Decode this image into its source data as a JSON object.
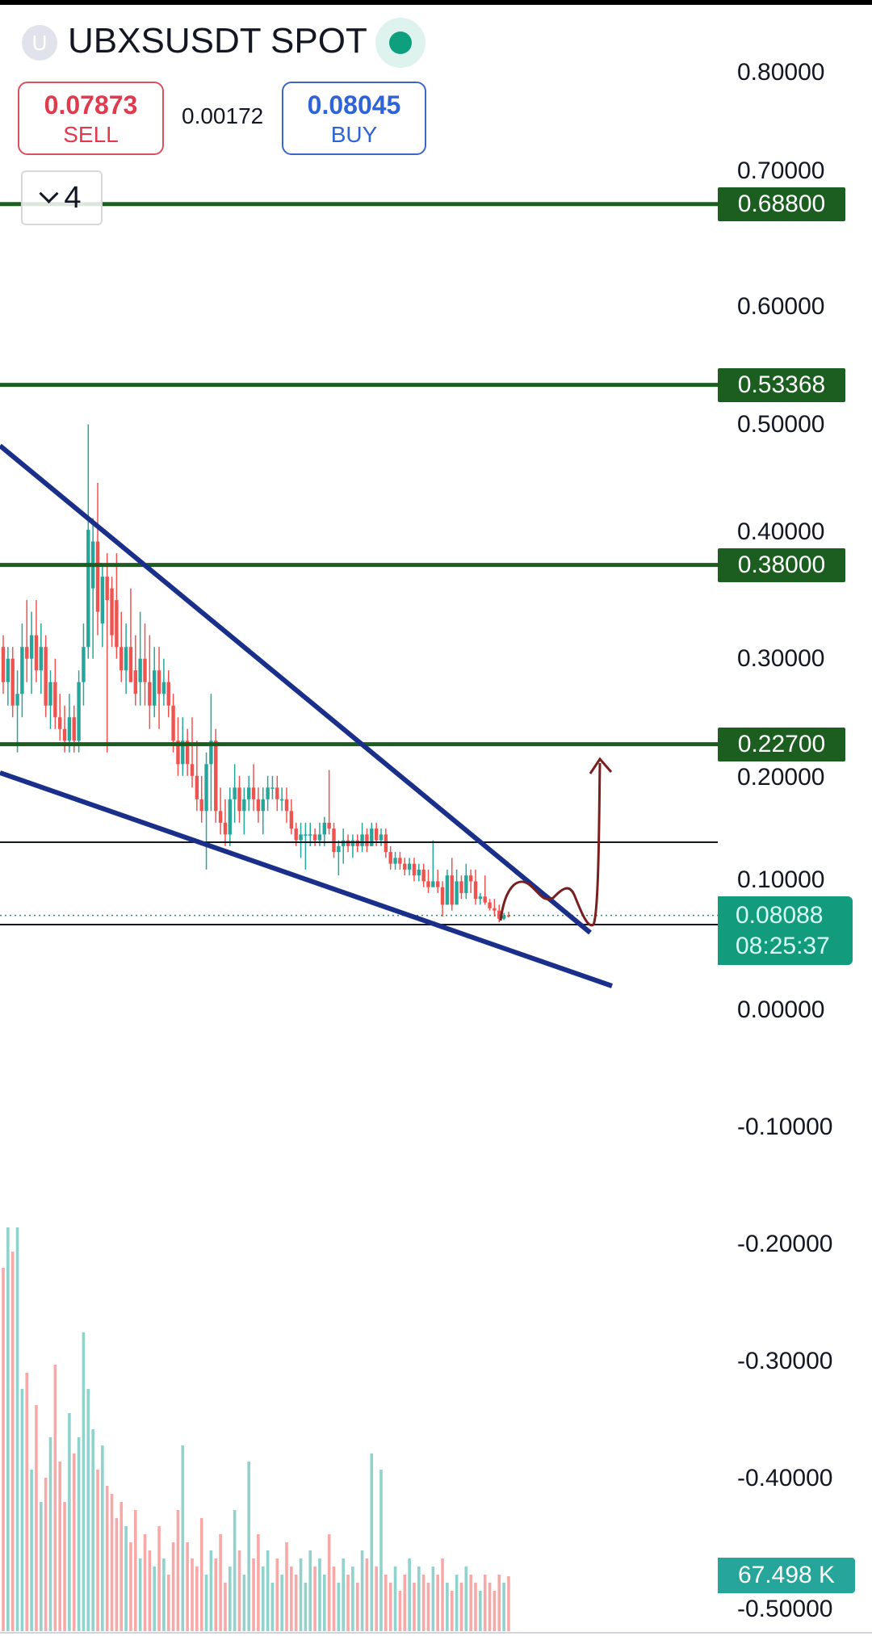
{
  "header": {
    "avatar_letter": "U",
    "symbol": "UBXSUSDT SPOT",
    "status_color": "#0e9f7e",
    "sell": {
      "price": "0.07873",
      "label": "SELL",
      "color": "#e03a4d"
    },
    "spread": "0.00172",
    "buy": {
      "price": "0.08045",
      "label": "BUY",
      "color": "#2f63d8"
    },
    "indicators_toggle": {
      "icon": "chevron-down-icon",
      "count": "4"
    }
  },
  "price_axis": {
    "labels": [
      "0.80000",
      "0.70000",
      "0.60000",
      "0.50000",
      "0.40000",
      "0.30000",
      "0.20000",
      "0.10000",
      "0.00000",
      "-0.10000",
      "-0.20000",
      "-0.30000",
      "-0.40000",
      "-0.50000"
    ],
    "values": [
      0.8,
      0.7,
      0.6,
      0.5,
      0.4,
      0.3,
      0.2,
      0.1,
      0.0,
      -0.1,
      -0.2,
      -0.3,
      -0.4,
      -0.5
    ]
  },
  "levels": [
    {
      "label": "0.68800",
      "value": 0.688
    },
    {
      "label": "0.53368",
      "value": 0.53368
    },
    {
      "label": "0.38000",
      "value": 0.38
    },
    {
      "label": "0.22700",
      "value": 0.227
    }
  ],
  "current_price": {
    "price": "0.08088",
    "countdown": "08:25:37",
    "value": 0.08088,
    "color": "#139b7d"
  },
  "volume": {
    "last_label": "67.498 K",
    "color": "#26a69a"
  },
  "colors": {
    "up": "#26a69a",
    "down": "#ef5350",
    "level": "#1b5e20",
    "trendline": "#1a2f8a",
    "drawing": "#7a1f1f"
  },
  "chart_data": {
    "type": "candlestick",
    "ylim": [
      -0.5,
      0.8
    ],
    "candles_ohlc": [
      [
        0.31,
        0.32,
        0.27,
        0.28
      ],
      [
        0.28,
        0.31,
        0.26,
        0.3
      ],
      [
        0.3,
        0.31,
        0.25,
        0.26
      ],
      [
        0.26,
        0.29,
        0.22,
        0.27
      ],
      [
        0.27,
        0.33,
        0.25,
        0.31
      ],
      [
        0.31,
        0.35,
        0.28,
        0.3
      ],
      [
        0.3,
        0.34,
        0.27,
        0.32
      ],
      [
        0.32,
        0.35,
        0.28,
        0.29
      ],
      [
        0.29,
        0.33,
        0.27,
        0.31
      ],
      [
        0.31,
        0.32,
        0.25,
        0.26
      ],
      [
        0.26,
        0.29,
        0.24,
        0.28
      ],
      [
        0.28,
        0.3,
        0.24,
        0.25
      ],
      [
        0.25,
        0.27,
        0.23,
        0.24
      ],
      [
        0.24,
        0.26,
        0.22,
        0.23
      ],
      [
        0.23,
        0.27,
        0.22,
        0.25
      ],
      [
        0.25,
        0.26,
        0.22,
        0.23
      ],
      [
        0.23,
        0.29,
        0.22,
        0.28
      ],
      [
        0.28,
        0.33,
        0.26,
        0.31
      ],
      [
        0.31,
        0.5,
        0.3,
        0.41
      ],
      [
        0.36,
        0.42,
        0.3,
        0.4
      ],
      [
        0.4,
        0.45,
        0.32,
        0.34
      ],
      [
        0.33,
        0.38,
        0.31,
        0.37
      ],
      [
        0.37,
        0.39,
        0.22,
        0.35
      ],
      [
        0.36,
        0.37,
        0.31,
        0.32
      ],
      [
        0.35,
        0.39,
        0.3,
        0.31
      ],
      [
        0.31,
        0.34,
        0.28,
        0.29
      ],
      [
        0.29,
        0.33,
        0.27,
        0.31
      ],
      [
        0.31,
        0.36,
        0.28,
        0.28
      ],
      [
        0.29,
        0.32,
        0.26,
        0.27
      ],
      [
        0.28,
        0.34,
        0.26,
        0.3
      ],
      [
        0.3,
        0.33,
        0.26,
        0.28
      ],
      [
        0.28,
        0.32,
        0.24,
        0.26
      ],
      [
        0.26,
        0.31,
        0.25,
        0.29
      ],
      [
        0.29,
        0.31,
        0.24,
        0.27
      ],
      [
        0.27,
        0.3,
        0.26,
        0.28
      ],
      [
        0.28,
        0.29,
        0.25,
        0.26
      ],
      [
        0.26,
        0.27,
        0.22,
        0.23
      ],
      [
        0.23,
        0.25,
        0.2,
        0.21
      ],
      [
        0.21,
        0.25,
        0.2,
        0.23
      ],
      [
        0.23,
        0.24,
        0.2,
        0.21
      ],
      [
        0.21,
        0.25,
        0.19,
        0.2
      ],
      [
        0.2,
        0.23,
        0.17,
        0.18
      ],
      [
        0.18,
        0.2,
        0.16,
        0.17
      ],
      [
        0.17,
        0.22,
        0.12,
        0.21
      ],
      [
        0.21,
        0.27,
        0.17,
        0.23
      ],
      [
        0.23,
        0.24,
        0.16,
        0.17
      ],
      [
        0.17,
        0.19,
        0.15,
        0.16
      ],
      [
        0.16,
        0.18,
        0.14,
        0.15
      ],
      [
        0.15,
        0.19,
        0.14,
        0.18
      ],
      [
        0.18,
        0.21,
        0.16,
        0.19
      ],
      [
        0.19,
        0.2,
        0.16,
        0.17
      ],
      [
        0.17,
        0.19,
        0.15,
        0.18
      ],
      [
        0.18,
        0.2,
        0.17,
        0.19
      ],
      [
        0.19,
        0.21,
        0.17,
        0.18
      ],
      [
        0.18,
        0.19,
        0.16,
        0.17
      ],
      [
        0.17,
        0.19,
        0.15,
        0.18
      ],
      [
        0.18,
        0.2,
        0.17,
        0.19
      ],
      [
        0.19,
        0.2,
        0.18,
        0.19
      ],
      [
        0.19,
        0.2,
        0.17,
        0.18
      ],
      [
        0.18,
        0.19,
        0.17,
        0.18
      ],
      [
        0.18,
        0.19,
        0.16,
        0.17
      ],
      [
        0.17,
        0.18,
        0.15,
        0.155
      ],
      [
        0.155,
        0.16,
        0.14,
        0.145
      ],
      [
        0.145,
        0.16,
        0.13,
        0.15
      ],
      [
        0.15,
        0.16,
        0.12,
        0.15
      ],
      [
        0.15,
        0.16,
        0.14,
        0.15
      ],
      [
        0.15,
        0.155,
        0.14,
        0.145
      ],
      [
        0.145,
        0.16,
        0.14,
        0.15
      ],
      [
        0.15,
        0.165,
        0.14,
        0.16
      ],
      [
        0.16,
        0.205,
        0.15,
        0.155
      ],
      [
        0.155,
        0.16,
        0.13,
        0.135
      ],
      [
        0.135,
        0.145,
        0.115,
        0.14
      ],
      [
        0.14,
        0.155,
        0.125,
        0.145
      ],
      [
        0.145,
        0.15,
        0.135,
        0.14
      ],
      [
        0.14,
        0.15,
        0.13,
        0.145
      ],
      [
        0.145,
        0.15,
        0.135,
        0.14
      ],
      [
        0.14,
        0.16,
        0.135,
        0.15
      ],
      [
        0.15,
        0.155,
        0.135,
        0.14
      ],
      [
        0.14,
        0.16,
        0.14,
        0.155
      ],
      [
        0.155,
        0.16,
        0.14,
        0.145
      ],
      [
        0.145,
        0.155,
        0.14,
        0.15
      ],
      [
        0.15,
        0.155,
        0.13,
        0.135
      ],
      [
        0.135,
        0.14,
        0.12,
        0.125
      ],
      [
        0.125,
        0.135,
        0.12,
        0.13
      ],
      [
        0.13,
        0.135,
        0.12,
        0.125
      ],
      [
        0.125,
        0.13,
        0.115,
        0.12
      ],
      [
        0.12,
        0.13,
        0.115,
        0.125
      ],
      [
        0.125,
        0.13,
        0.11,
        0.115
      ],
      [
        0.115,
        0.125,
        0.11,
        0.12
      ],
      [
        0.12,
        0.125,
        0.105,
        0.11
      ],
      [
        0.11,
        0.12,
        0.1,
        0.105
      ],
      [
        0.105,
        0.145,
        0.105,
        0.11
      ],
      [
        0.11,
        0.12,
        0.1,
        0.105
      ],
      [
        0.105,
        0.11,
        0.08,
        0.09
      ],
      [
        0.09,
        0.12,
        0.09,
        0.115
      ],
      [
        0.115,
        0.13,
        0.085,
        0.09
      ],
      [
        0.09,
        0.12,
        0.09,
        0.11
      ],
      [
        0.11,
        0.115,
        0.095,
        0.1
      ],
      [
        0.1,
        0.125,
        0.095,
        0.115
      ],
      [
        0.115,
        0.12,
        0.1,
        0.11
      ],
      [
        0.11,
        0.12,
        0.09,
        0.095
      ],
      [
        0.095,
        0.1,
        0.09,
        0.097
      ],
      [
        0.097,
        0.115,
        0.09,
        0.092
      ],
      [
        0.092,
        0.095,
        0.085,
        0.087
      ],
      [
        0.087,
        0.095,
        0.08,
        0.085
      ],
      [
        0.085,
        0.09,
        0.075,
        0.078
      ],
      [
        0.078,
        0.083,
        0.077,
        0.081
      ],
      [
        0.081,
        0.084,
        0.079,
        0.0809
      ]
    ],
    "volumes_k": [
      450,
      500,
      470,
      500,
      300,
      320,
      200,
      280,
      160,
      190,
      240,
      330,
      210,
      160,
      270,
      220,
      240,
      370,
      300,
      250,
      200,
      230,
      180,
      170,
      140,
      160,
      130,
      110,
      150,
      90,
      120,
      100,
      80,
      130,
      90,
      70,
      110,
      150,
      230,
      110,
      90,
      80,
      140,
      70,
      100,
      90,
      120,
      60,
      80,
      150,
      100,
      70,
      210,
      90,
      120,
      80,
      100,
      60,
      90,
      70,
      110,
      80,
      70,
      90,
      60,
      100,
      80,
      90,
      70,
      120,
      80,
      60,
      90,
      70,
      80,
      60,
      100,
      90,
      220,
      80,
      200,
      70,
      60,
      80,
      50,
      70,
      90,
      60,
      80,
      70,
      60,
      80,
      70,
      90,
      60,
      50,
      70,
      60,
      80,
      70,
      60,
      50,
      70,
      60,
      50,
      70,
      60,
      68
    ]
  }
}
